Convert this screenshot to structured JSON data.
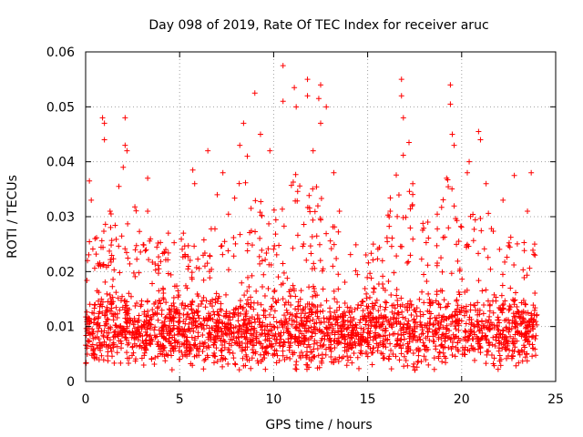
{
  "chart_data": {
    "type": "scatter",
    "title": "Day 098 of 2019, Rate Of TEC Index for receiver aruc",
    "xlabel": "GPS time / hours",
    "ylabel": "ROTI / TECUs",
    "xlim": [
      0,
      25
    ],
    "ylim": [
      0,
      0.06
    ],
    "x_ticks": [
      "0",
      "5",
      "10",
      "15",
      "20",
      "25"
    ],
    "y_ticks": [
      "0",
      "0.01",
      "0.02",
      "0.03",
      "0.04",
      "0.05",
      "0.06"
    ],
    "grid": true,
    "marker": "plus",
    "marker_color": "#ff0000",
    "series": [
      {
        "name": "ROTI",
        "description": "dense scatter of several thousand samples across 0-24 h; representative points below",
        "points": [
          [
            0.1,
            0.022
          ],
          [
            0.2,
            0.0365
          ],
          [
            0.3,
            0.033
          ],
          [
            0.5,
            0.026
          ],
          [
            0.9,
            0.048
          ],
          [
            1.0,
            0.047
          ],
          [
            1.0,
            0.044
          ],
          [
            1.3,
            0.031
          ],
          [
            2.0,
            0.039
          ],
          [
            2.1,
            0.048
          ],
          [
            2.1,
            0.043
          ],
          [
            2.2,
            0.042
          ],
          [
            3.3,
            0.037
          ],
          [
            3.3,
            0.031
          ],
          [
            4.4,
            0.027
          ],
          [
            5.2,
            0.027
          ],
          [
            5.7,
            0.0385
          ],
          [
            5.8,
            0.036
          ],
          [
            6.5,
            0.042
          ],
          [
            7.0,
            0.034
          ],
          [
            7.3,
            0.038
          ],
          [
            8.2,
            0.043
          ],
          [
            8.4,
            0.047
          ],
          [
            8.6,
            0.041
          ],
          [
            9.0,
            0.0525
          ],
          [
            9.3,
            0.045
          ],
          [
            9.8,
            0.042
          ],
          [
            10.5,
            0.0575
          ],
          [
            10.5,
            0.051
          ],
          [
            11.1,
            0.0535
          ],
          [
            11.2,
            0.05
          ],
          [
            11.8,
            0.055
          ],
          [
            11.8,
            0.052
          ],
          [
            12.1,
            0.042
          ],
          [
            12.4,
            0.0515
          ],
          [
            12.5,
            0.054
          ],
          [
            12.5,
            0.047
          ],
          [
            12.8,
            0.05
          ],
          [
            13.2,
            0.038
          ],
          [
            13.5,
            0.031
          ],
          [
            15.3,
            0.025
          ],
          [
            16.2,
            0.031
          ],
          [
            16.8,
            0.055
          ],
          [
            16.8,
            0.052
          ],
          [
            16.9,
            0.048
          ],
          [
            17.2,
            0.0435
          ],
          [
            17.4,
            0.036
          ],
          [
            18.2,
            0.029
          ],
          [
            19.2,
            0.037
          ],
          [
            19.4,
            0.054
          ],
          [
            19.4,
            0.0505
          ],
          [
            19.5,
            0.045
          ],
          [
            19.6,
            0.043
          ],
          [
            20.3,
            0.038
          ],
          [
            20.4,
            0.04
          ],
          [
            20.9,
            0.0455
          ],
          [
            21.0,
            0.044
          ],
          [
            21.3,
            0.036
          ],
          [
            22.2,
            0.033
          ],
          [
            22.8,
            0.0375
          ],
          [
            23.5,
            0.031
          ],
          [
            23.7,
            0.038
          ],
          [
            23.9,
            0.023
          ],
          [
            0.5,
            0.008
          ],
          [
            2.5,
            0.011
          ],
          [
            4.5,
            0.009
          ],
          [
            7.5,
            0.012
          ],
          [
            10.0,
            0.01
          ],
          [
            12.5,
            0.009
          ],
          [
            15.0,
            0.007
          ],
          [
            17.5,
            0.013
          ],
          [
            20.0,
            0.011
          ],
          [
            22.5,
            0.009
          ],
          [
            23.8,
            0.006
          ]
        ]
      }
    ]
  }
}
